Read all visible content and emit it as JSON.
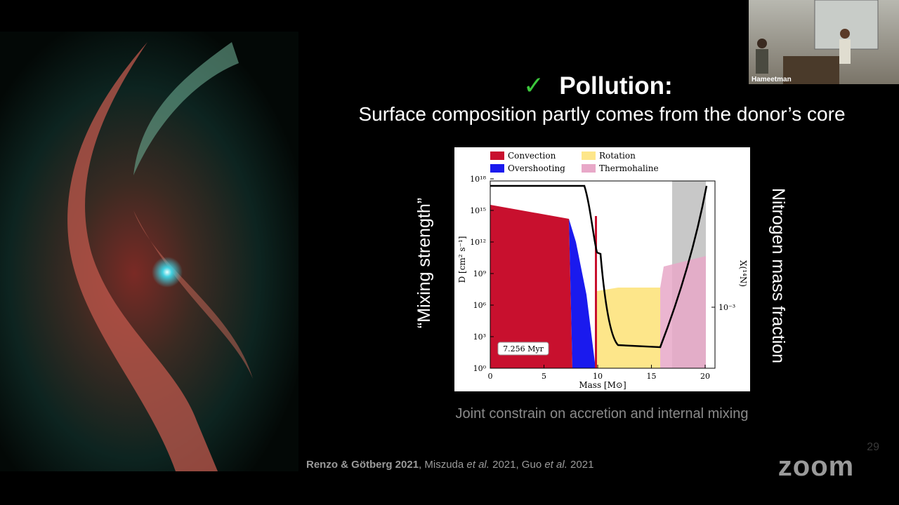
{
  "webcam": {
    "name": "Hameetman"
  },
  "slide": {
    "check": "✓",
    "title": "Pollution:",
    "subtitle": "Surface composition partly comes from the donor’s core",
    "left_label": "“Mixing strength”",
    "right_label": "Nitrogen mass fraction",
    "caption": "Joint constrain on accretion and internal mixing",
    "citation": [
      "Renzo & Götberg 2021",
      ", Miszuda ",
      "et al.",
      " 2021, Guo ",
      "et al.",
      " 2021"
    ],
    "page_number": "29"
  },
  "figure": {
    "legend": [
      "Convection",
      "Overshooting",
      "Rotation",
      "Thermohaline"
    ],
    "x_label": "Mass [M⊙]",
    "y_label": "D [cm² s⁻¹]",
    "y2_label": "X(¹⁴N)",
    "x_ticks": [
      "0",
      "5",
      "10",
      "15",
      "20"
    ],
    "y_ticks": [
      "10⁰",
      "10³",
      "10⁶",
      "10⁹",
      "10¹²",
      "10¹⁵",
      "10¹⁸"
    ],
    "y2_ticks": [
      "10⁻³"
    ],
    "annotation": "7.256 Myr"
  },
  "app": {
    "logo": "zoom"
  }
}
